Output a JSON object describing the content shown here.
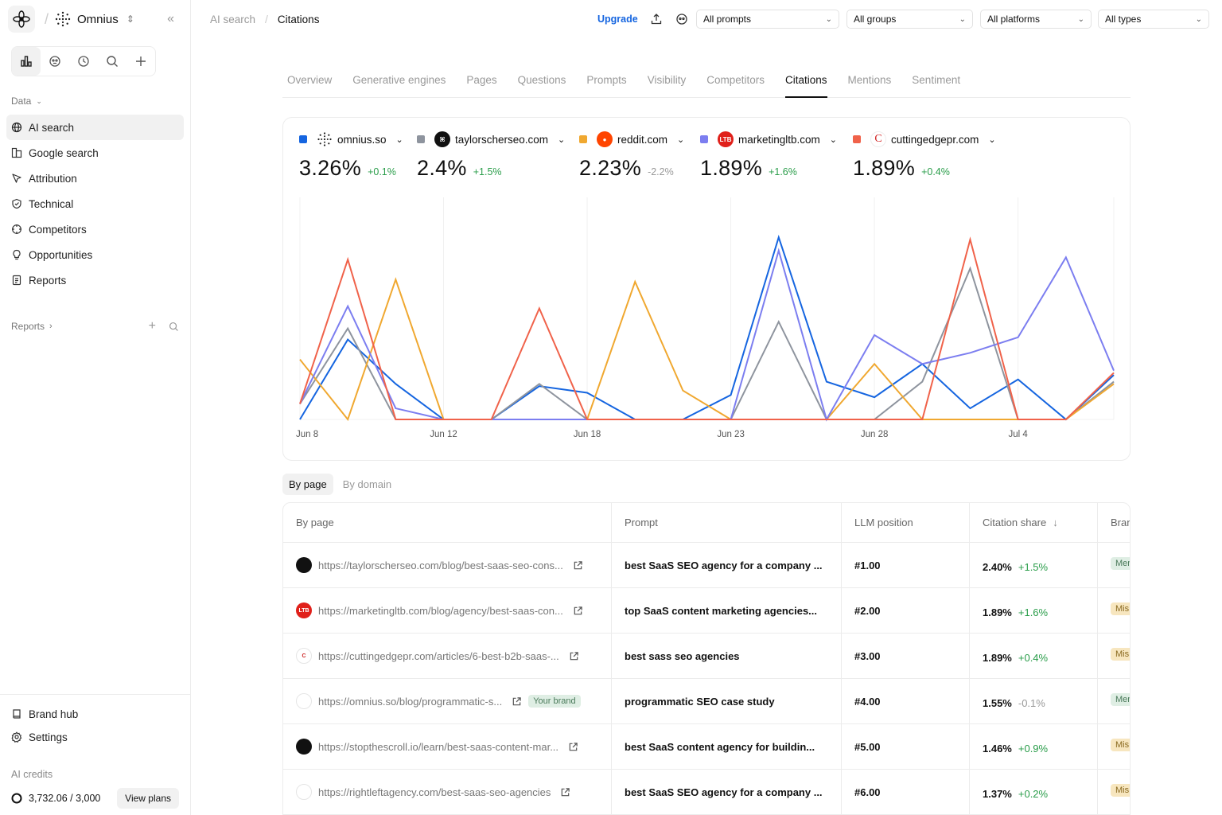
{
  "workspace": {
    "name": "Omnius"
  },
  "sidebar": {
    "data_label": "Data",
    "items": [
      {
        "label": "AI search",
        "icon": "globe-icon",
        "active": true
      },
      {
        "label": "Google search",
        "icon": "google-icon"
      },
      {
        "label": "Attribution",
        "icon": "cursor-icon"
      },
      {
        "label": "Technical",
        "icon": "shield-icon"
      },
      {
        "label": "Competitors",
        "icon": "crosshair-icon"
      },
      {
        "label": "Opportunities",
        "icon": "lightbulb-icon"
      },
      {
        "label": "Reports",
        "icon": "document-icon"
      }
    ],
    "reports_label": "Reports",
    "bottom": [
      {
        "label": "Brand hub",
        "icon": "book-icon"
      },
      {
        "label": "Settings",
        "icon": "gear-icon"
      }
    ],
    "credits_label": "AI credits",
    "credits_value": "3,732.06 / 3,000",
    "view_plans": "View plans"
  },
  "breadcrumb": {
    "parent": "AI search",
    "current": "Citations"
  },
  "toolbar": {
    "upgrade": "Upgrade",
    "filters": [
      "All prompts",
      "All groups",
      "All platforms",
      "All types"
    ]
  },
  "tabs": [
    "Overview",
    "Generative engines",
    "Pages",
    "Questions",
    "Prompts",
    "Visibility",
    "Competitors",
    "Citations",
    "Mentions",
    "Sentiment"
  ],
  "active_tab": "Citations",
  "colors": {
    "blue": "#1565e0",
    "gray": "#8e949e",
    "orange": "#f0a830",
    "purple": "#7c7ef0",
    "red": "#f0624a"
  },
  "legend": [
    {
      "domain": "omnius.so",
      "value": "3.26%",
      "delta": "+0.1%",
      "dir": "pos",
      "color": "#1565e0"
    },
    {
      "domain": "taylorscherseo.com",
      "value": "2.4%",
      "delta": "+1.5%",
      "dir": "pos",
      "color": "#8e949e"
    },
    {
      "domain": "reddit.com",
      "value": "2.23%",
      "delta": "-2.2%",
      "dir": "neg",
      "color": "#f0a830"
    },
    {
      "domain": "marketingltb.com",
      "value": "1.89%",
      "delta": "+1.6%",
      "dir": "pos",
      "color": "#7c7ef0"
    },
    {
      "domain": "cuttingedgepr.com",
      "value": "1.89%",
      "delta": "+0.4%",
      "dir": "pos",
      "color": "#f0624a"
    }
  ],
  "chart_data": {
    "type": "line",
    "x_tick_labels": [
      "Jun 8",
      "Jun 12",
      "Jun 18",
      "Jun 23",
      "Jun 28",
      "Jul 4"
    ],
    "ylim": [
      0,
      100
    ],
    "grid": "vertical",
    "series": [
      {
        "name": "omnius.so",
        "color": "#1565e0",
        "values": [
          0,
          36,
          16,
          0,
          0,
          15,
          12,
          0,
          0,
          11,
          82,
          17,
          10,
          25,
          5,
          18,
          0,
          20
        ]
      },
      {
        "name": "taylorscherseo.com",
        "color": "#8e949e",
        "values": [
          7,
          41,
          0,
          0,
          0,
          16,
          0,
          0,
          0,
          0,
          44,
          0,
          0,
          17,
          68,
          0,
          0,
          17
        ]
      },
      {
        "name": "reddit.com",
        "color": "#f0a830",
        "values": [
          27,
          0,
          63,
          0,
          0,
          0,
          0,
          62,
          13,
          0,
          0,
          0,
          25,
          0,
          0,
          0,
          0,
          16
        ]
      },
      {
        "name": "marketingltb.com",
        "color": "#7c7ef0",
        "values": [
          7,
          51,
          5,
          0,
          0,
          0,
          0,
          0,
          0,
          0,
          76,
          0,
          38,
          25,
          30,
          37,
          73,
          22
        ]
      },
      {
        "name": "cuttingedgepr.com",
        "color": "#f0624a",
        "values": [
          7,
          72,
          0,
          0,
          0,
          50,
          0,
          0,
          0,
          0,
          0,
          0,
          0,
          0,
          81,
          0,
          0,
          21
        ]
      }
    ]
  },
  "segment": [
    "By page",
    "By domain"
  ],
  "table": {
    "columns": [
      "By page",
      "Prompt",
      "LLM position",
      "Citation share",
      "Bran"
    ],
    "rows": [
      {
        "url": "https://taylorscherseo.com/blog/best-saas-seo-cons...",
        "prompt": "best SaaS SEO agency for a company ...",
        "pos": "#1.00",
        "share": "2.40%",
        "delta": "+1.5%",
        "dir": "pos",
        "chip": "Men",
        "chip_type": "men",
        "fav": "#111",
        "fav_text": ""
      },
      {
        "url": "https://marketingltb.com/blog/agency/best-saas-con...",
        "prompt": "top SaaS content marketing agencies...",
        "pos": "#2.00",
        "share": "1.89%",
        "delta": "+1.6%",
        "dir": "pos",
        "chip": "Mis",
        "chip_type": "mis",
        "fav": "#e0201a",
        "fav_text": "LTB"
      },
      {
        "url": "https://cuttingedgepr.com/articles/6-best-b2b-saas-...",
        "prompt": "best sass seo agencies",
        "pos": "#3.00",
        "share": "1.89%",
        "delta": "+0.4%",
        "dir": "pos",
        "chip": "Mis",
        "chip_type": "mis",
        "fav": "#fff",
        "fav_text": "C"
      },
      {
        "url": "https://omnius.so/blog/programmatic-s...",
        "prompt": "programmatic SEO case study",
        "pos": "#4.00",
        "share": "1.55%",
        "delta": "-0.1%",
        "dir": "neg",
        "chip": "Men",
        "chip_type": "men",
        "fav": "#fff",
        "fav_text": "",
        "brand": "Your brand"
      },
      {
        "url": "https://stopthescroll.io/learn/best-saas-content-mar...",
        "prompt": "best SaaS content agency for buildin...",
        "pos": "#5.00",
        "share": "1.46%",
        "delta": "+0.9%",
        "dir": "pos",
        "chip": "Mis",
        "chip_type": "mis",
        "fav": "#111",
        "fav_text": ""
      },
      {
        "url": "https://rightleftagency.com/best-saas-seo-agencies",
        "prompt": "best SaaS SEO agency for a company ...",
        "pos": "#6.00",
        "share": "1.37%",
        "delta": "+0.2%",
        "dir": "pos",
        "chip": "Mis",
        "chip_type": "mis",
        "fav": "#fff",
        "fav_text": ""
      }
    ]
  }
}
